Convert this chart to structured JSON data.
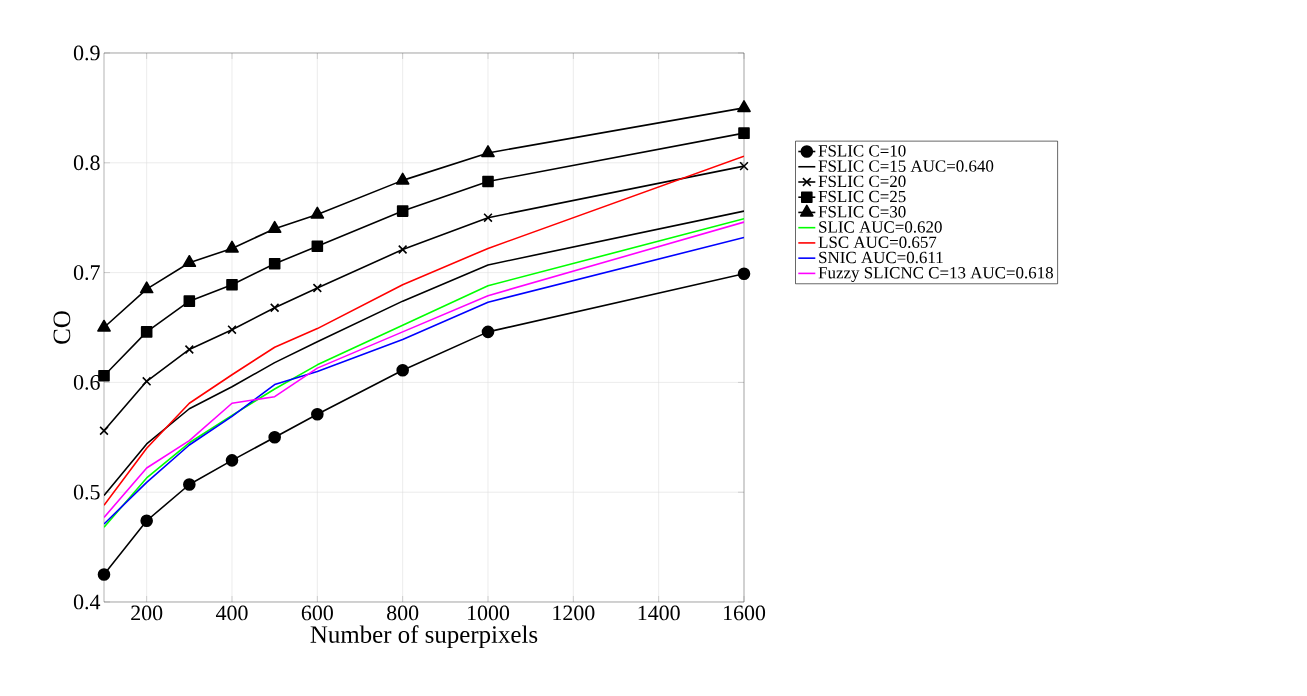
{
  "chart_data": {
    "type": "line",
    "xlabel": "Number of superpixels",
    "ylabel": "CO",
    "x": [
      100,
      200,
      300,
      400,
      500,
      600,
      800,
      1000,
      1600
    ],
    "xlim": [
      100,
      1600
    ],
    "xticks": [
      200,
      400,
      600,
      800,
      1000,
      1200,
      1400,
      1600
    ],
    "ylim": [
      0.4,
      0.9
    ],
    "yticks": [
      0.4,
      0.5,
      0.6,
      0.7,
      0.8,
      0.9
    ],
    "grid": true,
    "legend": "right",
    "line_style": "solid",
    "series": [
      {
        "name": "FSLIC C=10",
        "color": "#000000",
        "marker": "circle",
        "values": [
          0.425,
          0.474,
          0.507,
          0.529,
          0.55,
          0.571,
          0.611,
          0.646,
          0.699
        ]
      },
      {
        "name": "FSLIC C=15 AUC=0.640",
        "color": "#000000",
        "marker": "none",
        "values": [
          0.497,
          0.544,
          0.576,
          0.596,
          0.618,
          0.637,
          0.674,
          0.707,
          0.756
        ]
      },
      {
        "name": "FSLIC C=20",
        "color": "#000000",
        "marker": "cross",
        "values": [
          0.556,
          0.601,
          0.63,
          0.648,
          0.668,
          0.686,
          0.721,
          0.75,
          0.797
        ]
      },
      {
        "name": "FSLIC C=25",
        "color": "#000000",
        "marker": "square",
        "values": [
          0.606,
          0.646,
          0.674,
          0.689,
          0.708,
          0.724,
          0.756,
          0.783,
          0.827
        ]
      },
      {
        "name": "FSLIC C=30",
        "color": "#000000",
        "marker": "triangle",
        "values": [
          0.65,
          0.685,
          0.709,
          0.722,
          0.74,
          0.753,
          0.784,
          0.809,
          0.85
        ]
      },
      {
        "name": "SLIC AUC=0.620",
        "color": "#00ff00",
        "marker": "none",
        "values": [
          0.468,
          0.513,
          0.545,
          0.57,
          0.594,
          0.616,
          0.652,
          0.688,
          0.749
        ]
      },
      {
        "name": "LSC AUC=0.657",
        "color": "#ff0000",
        "marker": "none",
        "values": [
          0.488,
          0.54,
          0.581,
          0.607,
          0.632,
          0.649,
          0.689,
          0.722,
          0.806
        ]
      },
      {
        "name": "SNIC AUC=0.611",
        "color": "#0000ff",
        "marker": "none",
        "values": [
          0.471,
          0.509,
          0.543,
          0.569,
          0.598,
          0.61,
          0.639,
          0.673,
          0.732
        ]
      },
      {
        "name": "Fuzzy SLICNC C=13 AUC=0.618",
        "color": "#ff00ff",
        "marker": "none",
        "values": [
          0.477,
          0.522,
          0.547,
          0.581,
          0.587,
          0.613,
          0.646,
          0.679,
          0.746
        ]
      }
    ]
  }
}
